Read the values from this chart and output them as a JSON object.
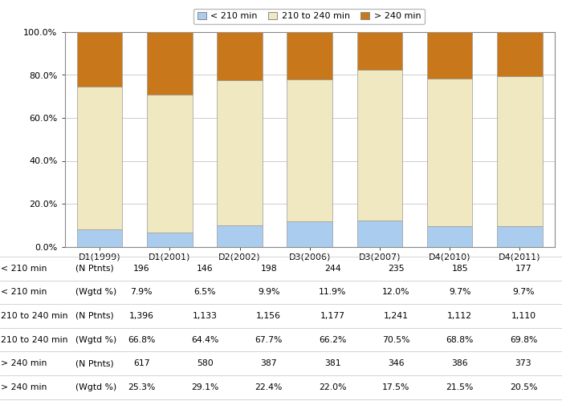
{
  "categories": [
    "D1(1999)",
    "D1(2001)",
    "D2(2002)",
    "D3(2006)",
    "D3(2007)",
    "D4(2010)",
    "D4(2011)"
  ],
  "less210": [
    7.9,
    6.5,
    9.9,
    11.9,
    12.0,
    9.7,
    9.7
  ],
  "mid210_240": [
    66.8,
    64.4,
    67.7,
    66.2,
    70.5,
    68.8,
    69.8
  ],
  "more240": [
    25.3,
    29.1,
    22.4,
    22.0,
    17.5,
    21.5,
    20.5
  ],
  "color_less210": "#aaccee",
  "color_mid": "#f0e8c0",
  "color_more240": "#c8781a",
  "table_data": {
    "less210_N": [
      "196",
      "146",
      "198",
      "244",
      "235",
      "185",
      "177"
    ],
    "less210_pct": [
      "7.9%",
      "6.5%",
      "9.9%",
      "11.9%",
      "12.0%",
      "9.7%",
      "9.7%"
    ],
    "mid_N": [
      "1,396",
      "1,133",
      "1,156",
      "1,177",
      "1,241",
      "1,112",
      "1,110"
    ],
    "mid_pct": [
      "66.8%",
      "64.4%",
      "67.7%",
      "66.2%",
      "70.5%",
      "68.8%",
      "69.8%"
    ],
    "more240_N": [
      "617",
      "580",
      "387",
      "381",
      "346",
      "386",
      "373"
    ],
    "more240_pct": [
      "25.3%",
      "29.1%",
      "22.4%",
      "22.0%",
      "17.5%",
      "21.5%",
      "20.5%"
    ]
  },
  "legend_labels": [
    "< 210 min",
    "210 to 240 min",
    "> 240 min"
  ],
  "row_label1": [
    "< 210 min",
    "< 210 min",
    "210 to 240 min",
    "210 to 240 min",
    "> 240 min",
    "> 240 min"
  ],
  "row_label2": [
    "(N Ptnts)",
    "(Wgtd %)",
    "(N Ptnts)",
    "(Wgtd %)",
    "(N Ptnts)",
    "(Wgtd %)"
  ]
}
